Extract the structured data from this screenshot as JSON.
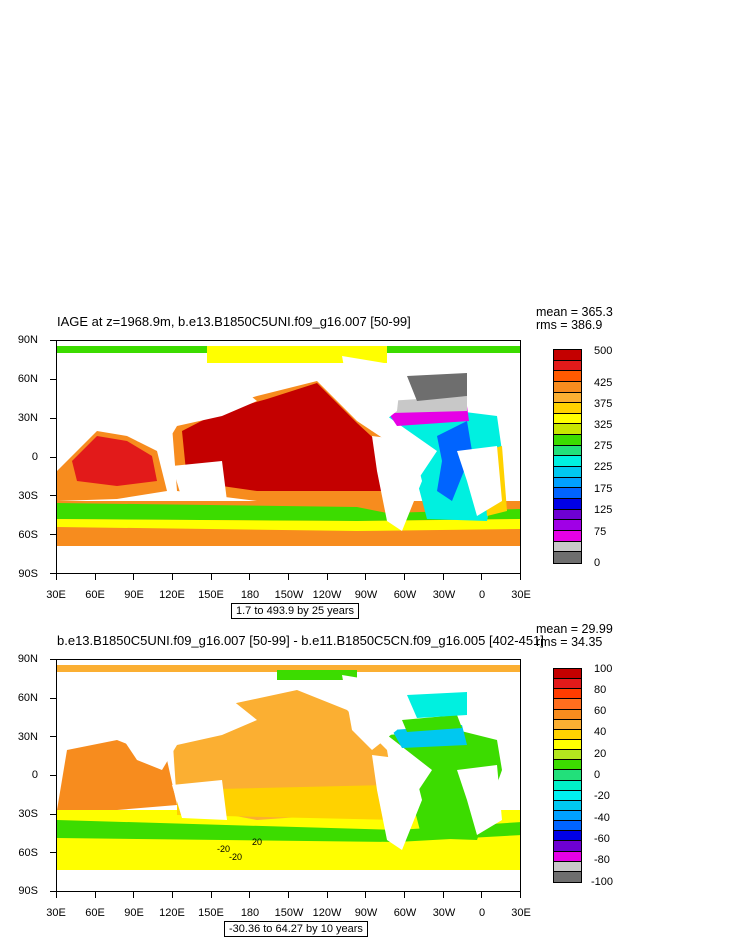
{
  "panel1": {
    "title": "IAGE at z=1968.9m, b.e13.B1850C5UNI.f09_g16.007 [50-99]",
    "mean_label": "mean = 365.3",
    "rms_label": "rms = 386.9",
    "range_label": "1.7 to 493.9 by 25 years",
    "colorbar_labels": [
      "500",
      "425",
      "375",
      "325",
      "275",
      "225",
      "175",
      "125",
      "75",
      "0"
    ],
    "colorbar_colors": [
      "#c40000",
      "#e21a1a",
      "#ff5a00",
      "#f78c1e",
      "#fbaf32",
      "#ffd200",
      "#ffff00",
      "#c8e600",
      "#3cdc00",
      "#22e07a",
      "#00f0e0",
      "#00c8f0",
      "#00a0ff",
      "#0064ff",
      "#0000e6",
      "#6e00d2",
      "#a000e6",
      "#e600e6",
      "#c8c8c8",
      "#6e6e6e"
    ]
  },
  "panel2": {
    "title": "b.e13.B1850C5UNI.f09_g16.007 [50-99] - b.e11.B1850C5CN.f09_g16.005 [402-451]",
    "mean_label": "mean = 29.99",
    "rms_label": "rms = 34.35",
    "range_label": "-30.36 to 64.27 by 10 years",
    "colorbar_labels": [
      "100",
      "80",
      "60",
      "40",
      "20",
      "0",
      "-20",
      "-40",
      "-60",
      "-80",
      "-100"
    ],
    "colorbar_colors": [
      "#c40000",
      "#e21a1a",
      "#ff3c00",
      "#ff6e1e",
      "#f78c1e",
      "#fbaf32",
      "#ffd200",
      "#ffff00",
      "#b4e61e",
      "#3cdc00",
      "#22e07a",
      "#00f0c8",
      "#00f0f0",
      "#00c8f0",
      "#00a0ff",
      "#0064ff",
      "#0000e6",
      "#6e00d2",
      "#e600e6",
      "#c8c8c8",
      "#6e6e6e"
    ],
    "contour_labels": [
      "-20",
      "-20",
      "20"
    ]
  },
  "axes": {
    "lat_labels": [
      "90N",
      "60N",
      "30N",
      "0",
      "30S",
      "60S",
      "90S"
    ],
    "lon_labels": [
      "30E",
      "60E",
      "90E",
      "120E",
      "150E",
      "180",
      "150W",
      "120W",
      "90W",
      "60W",
      "30W",
      "0",
      "30E"
    ]
  }
}
